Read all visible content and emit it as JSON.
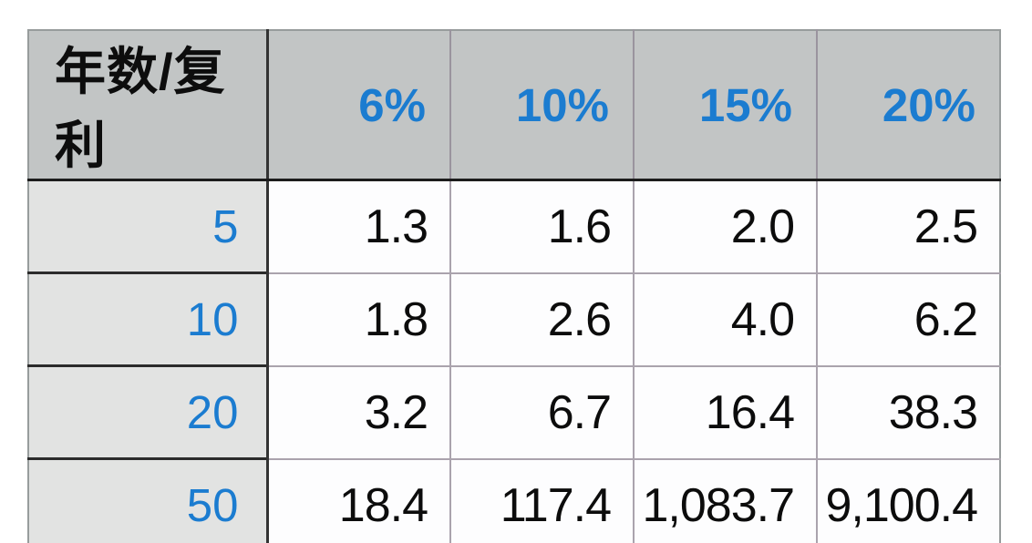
{
  "colors": {
    "header_bg": "#c2c5c5",
    "label_bg": "#e2e3e2",
    "cell_bg": "#fdfdfe",
    "accent_blue": "#1b7cd0",
    "text_black": "#0c0c0c",
    "dark_border": "#333333",
    "light_border": "#aaa3ad"
  },
  "table": {
    "corner_label": "年数/复利",
    "columns": [
      "6%",
      "10%",
      "15%",
      "20%"
    ],
    "rows": [
      {
        "label": "5",
        "values": [
          "1.3",
          "1.6",
          "2.0",
          "2.5"
        ]
      },
      {
        "label": "10",
        "values": [
          "1.8",
          "2.6",
          "4.0",
          "6.2"
        ]
      },
      {
        "label": "20",
        "values": [
          "3.2",
          "6.7",
          "16.4",
          "38.3"
        ]
      },
      {
        "label": "50",
        "values": [
          "18.4",
          "117.4",
          "1,083.7",
          "9,100.4"
        ]
      }
    ]
  },
  "chart_data": {
    "type": "table",
    "title": "年数/复利",
    "columns": [
      "年数/复利",
      "6%",
      "10%",
      "15%",
      "20%"
    ],
    "categories": [
      "5",
      "10",
      "20",
      "50"
    ],
    "series": [
      {
        "name": "6%",
        "values": [
          1.3,
          1.8,
          3.2,
          18.4
        ]
      },
      {
        "name": "10%",
        "values": [
          1.6,
          2.6,
          6.7,
          117.4
        ]
      },
      {
        "name": "15%",
        "values": [
          2.0,
          4.0,
          16.4,
          1083.7
        ]
      },
      {
        "name": "20%",
        "values": [
          2.5,
          6.2,
          38.3,
          9100.4
        ]
      }
    ]
  }
}
